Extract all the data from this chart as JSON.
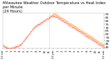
{
  "title": "Milwaukee Weather Outdoor Temperature vs Heat Index\nper Minute\n(24 Hours)",
  "title_fontsize": 3.8,
  "background_color": "#ffffff",
  "plot_bg_color": "#ffffff",
  "text_color": "#000000",
  "temp_color": "#ff0000",
  "heat_color": "#ff9900",
  "ylim": [
    38,
    92
  ],
  "yticks": [
    40,
    45,
    50,
    55,
    60,
    65,
    70,
    75,
    80,
    85,
    90
  ],
  "vline_x": 0.458,
  "vline_color": "#888888",
  "n_points": 1440,
  "temp_values": [
    43,
    42,
    41,
    40,
    39,
    38,
    38,
    38,
    38,
    39,
    39,
    40,
    40,
    41,
    41,
    42,
    43,
    44,
    45,
    47,
    49,
    51,
    53,
    55,
    57,
    59,
    61,
    63,
    65,
    67,
    69,
    71,
    72,
    73,
    74,
    75,
    76,
    77,
    78,
    79,
    80,
    81,
    82,
    83,
    84,
    85,
    86,
    87,
    88,
    88,
    88,
    87,
    87,
    86,
    85,
    84,
    83,
    82,
    81,
    80,
    79,
    78,
    77,
    76,
    75,
    74,
    73,
    72,
    71,
    70,
    69,
    68,
    67,
    66,
    65,
    64,
    63,
    62,
    61,
    60,
    59,
    58,
    57,
    56,
    55,
    54,
    53,
    52,
    51,
    50,
    49,
    48,
    47,
    46,
    45,
    44,
    43,
    42,
    41,
    40
  ],
  "heat_values": [
    43,
    42,
    41,
    40,
    39,
    38,
    38,
    38,
    38,
    39,
    39,
    40,
    40,
    41,
    41,
    42,
    43,
    44,
    45,
    47,
    49,
    51,
    53,
    55,
    57,
    59,
    61,
    63,
    65,
    67,
    69,
    71,
    72,
    73,
    74,
    75,
    76,
    77,
    78,
    79,
    80,
    81,
    82,
    83,
    84,
    85,
    86,
    87,
    89,
    90,
    91,
    91,
    90,
    89,
    88,
    87,
    86,
    85,
    84,
    83,
    82,
    81,
    80,
    79,
    78,
    77,
    76,
    75,
    74,
    73,
    72,
    71,
    70,
    69,
    68,
    67,
    66,
    65,
    64,
    63,
    62,
    61,
    60,
    59,
    58,
    57,
    56,
    55,
    54,
    53,
    52,
    51,
    50,
    49,
    48,
    47,
    46,
    45,
    44,
    43
  ],
  "xtick_labels": [
    "12 am",
    "1",
    "2",
    "3",
    "4",
    "5",
    "6",
    "7",
    "8",
    "9",
    "10",
    "11",
    "12 pm",
    "1",
    "2",
    "3",
    "4",
    "5",
    "6",
    "7",
    "8",
    "9",
    "10",
    "11",
    "12 am"
  ],
  "xtick_fontsize": 2.8,
  "ytick_fontsize": 3.2
}
